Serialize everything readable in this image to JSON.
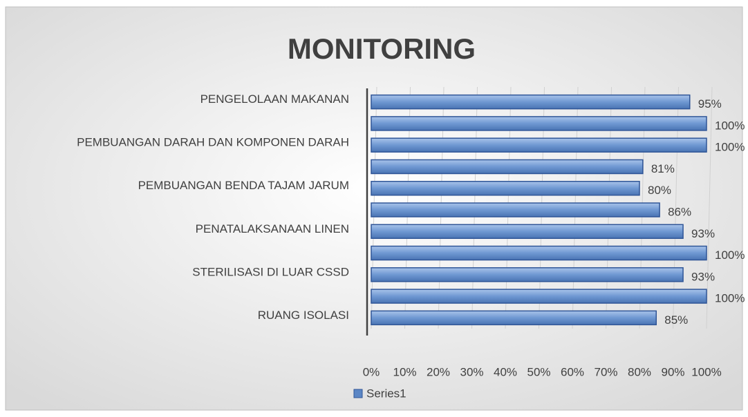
{
  "chart_data": {
    "type": "bar",
    "orientation": "horizontal",
    "title": "MONITORING",
    "categories": [
      "PENGELOLAAN MAKANAN",
      null,
      "PEMBUANGAN DARAH DAN KOMPONEN DARAH",
      null,
      "PEMBUANGAN BENDA TAJAM JARUM",
      null,
      "PENATALAKSANAAN LINEN",
      null,
      "STERILISASI DI LUAR CSSD",
      null,
      "RUANG ISOLASI"
    ],
    "series": [
      {
        "name": "Series1",
        "color": "#5b86c5",
        "values": [
          95,
          100,
          100,
          81,
          80,
          86,
          93,
          100,
          93,
          100,
          85
        ],
        "value_labels": [
          "95%",
          "100%",
          "100%",
          "81%",
          "80%",
          "86%",
          "93%",
          "100%",
          "93%",
          "100%",
          "85%"
        ]
      }
    ],
    "xlim": [
      0,
      100
    ],
    "xticks": [
      {
        "value": 0,
        "label": "0%"
      },
      {
        "value": 10,
        "label": "10%"
      },
      {
        "value": 20,
        "label": "20%"
      },
      {
        "value": 30,
        "label": "30%"
      },
      {
        "value": 40,
        "label": "40%"
      },
      {
        "value": 50,
        "label": "50%"
      },
      {
        "value": 60,
        "label": "60%"
      },
      {
        "value": 70,
        "label": "70%"
      },
      {
        "value": 80,
        "label": "80%"
      },
      {
        "value": 90,
        "label": "90%"
      },
      {
        "value": 100,
        "label": "100%"
      }
    ],
    "grid": true,
    "legend": "bottom"
  }
}
